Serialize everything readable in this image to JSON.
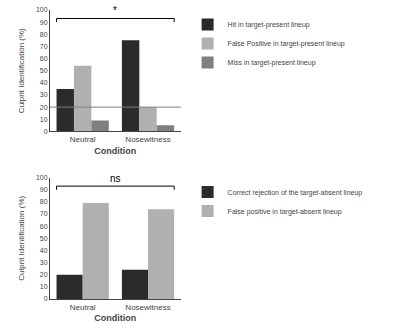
{
  "chart_data": [
    {
      "type": "bar",
      "categories": [
        "Neutral",
        "Nosewitness"
      ],
      "series": [
        {
          "name": "Hit in target-present lineup",
          "color": "#2b2b2b",
          "values": [
            35,
            75
          ]
        },
        {
          "name": "False Positive in target-present lineup",
          "color": "#b0b0b0",
          "values": [
            54,
            20
          ]
        },
        {
          "name": "Miss in target-present lineup",
          "color": "#808080",
          "values": [
            9,
            5
          ]
        }
      ],
      "xlabel": "Condition",
      "ylabel": "Culprit Identification (%)",
      "ylim": [
        0,
        100
      ],
      "yticks": [
        0,
        10,
        20,
        30,
        40,
        50,
        60,
        70,
        80,
        90,
        100
      ],
      "hline": 20,
      "annotations": [
        "*"
      ],
      "legend": "right",
      "grid": false
    },
    {
      "type": "bar",
      "categories": [
        "Neutral",
        "Nosewitness"
      ],
      "series": [
        {
          "name": "Correct rejection of the target-absent lineup",
          "color": "#2b2b2b",
          "values": [
            20,
            24
          ]
        },
        {
          "name": "False positive in target-absent lineup",
          "color": "#b0b0b0",
          "values": [
            79,
            74
          ]
        }
      ],
      "xlabel": "Condition",
      "ylabel": "Culprit Identification (%)",
      "ylim": [
        0,
        100
      ],
      "yticks": [
        0,
        10,
        20,
        30,
        40,
        50,
        60,
        70,
        80,
        90,
        100
      ],
      "annotations": [
        "ns"
      ],
      "legend": "right",
      "grid": false
    }
  ]
}
